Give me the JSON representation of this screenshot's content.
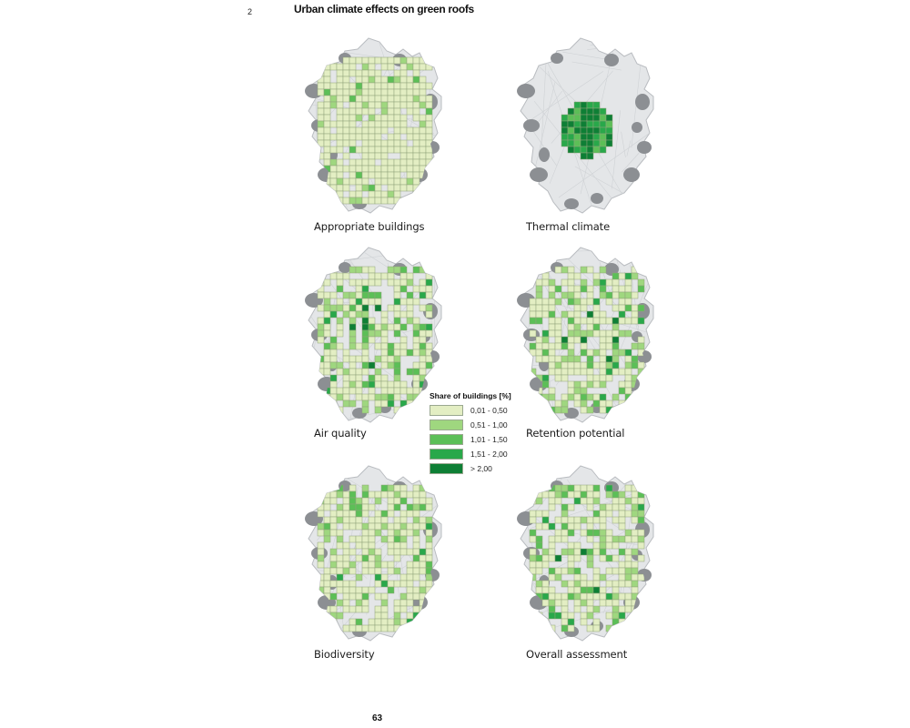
{
  "figure": {
    "number": "2",
    "title": "Urban climate effects on green roofs"
  },
  "panels": [
    {
      "caption": "Appropriate buildings",
      "pattern": "uniform-light"
    },
    {
      "caption": "Thermal climate",
      "pattern": "central-dark-cluster"
    },
    {
      "caption": "Air quality",
      "pattern": "scattered-mixed"
    },
    {
      "caption": "Retention potential",
      "pattern": "scattered-mixed"
    },
    {
      "caption": "Biodiversity",
      "pattern": "scattered-light"
    },
    {
      "caption": "Overall assessment",
      "pattern": "scattered-mixed"
    }
  ],
  "legend": {
    "title": "Share of buildings [%]",
    "items": [
      {
        "label": "0,01 - 0,50",
        "color": "#e3eec3"
      },
      {
        "label": "0,51 - 1,00",
        "color": "#9fd77f"
      },
      {
        "label": "1,01 - 1,50",
        "color": "#5cbf57"
      },
      {
        "label": "1,51 - 2,00",
        "color": "#29a84a"
      },
      {
        "label": "> 2,00",
        "color": "#0e7f35"
      }
    ]
  },
  "page_number": "63",
  "colors": {
    "city_fill": "#e4e6e8",
    "city_outline": "#b9bcc0",
    "built_dark": "#8c8f93",
    "grid_line": "#8fa27a"
  }
}
